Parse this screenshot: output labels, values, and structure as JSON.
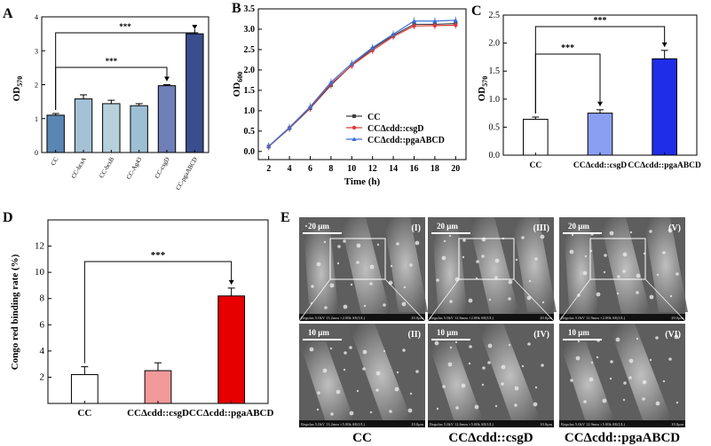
{
  "panel_letters": [
    "A",
    "B",
    "C",
    "D",
    "E"
  ],
  "chart_data": [
    {
      "panel": "A",
      "type": "bar",
      "ylabel_main": "OD",
      "ylabel_sub": "570",
      "ylim": [
        0,
        4
      ],
      "yticks": [
        "0",
        "1",
        "2",
        "3",
        "4"
      ],
      "categories": [
        "CC",
        "CC-bcsA",
        "CC-bcsB",
        "CC-Ag43",
        "CC-csgD",
        "CC-pgaABCD"
      ],
      "values": [
        1.1,
        1.58,
        1.44,
        1.38,
        1.97,
        3.5
      ],
      "errors": [
        0.05,
        0.12,
        0.1,
        0.06,
        0.03,
        0.03
      ],
      "colors": [
        "#5a86b4",
        "#a4c1d6",
        "#b6d1dc",
        "#9dbfd4",
        "#6f7fb8",
        "#3a4e8e"
      ],
      "significance": [
        {
          "from": 0,
          "to": 4,
          "label": "***"
        },
        {
          "from": 0,
          "to": 5,
          "label": "***"
        }
      ]
    },
    {
      "panel": "B",
      "type": "line",
      "xlabel": "Time (h)",
      "ylabel_main": "OD",
      "ylabel_sub": "600",
      "x": [
        2,
        4,
        6,
        8,
        10,
        12,
        14,
        16,
        18,
        20
      ],
      "xlim": [
        1,
        21
      ],
      "ylim": [
        -0.2,
        3.5
      ],
      "xticks": [
        "2",
        "4",
        "6",
        "8",
        "10",
        "12",
        "14",
        "16",
        "18",
        "20"
      ],
      "yticks": [
        "0.0",
        "0.5",
        "1.0",
        "1.5",
        "2.0",
        "2.5",
        "3.0",
        "3.5"
      ],
      "grid": false,
      "legend_position": "lower-right",
      "series": [
        {
          "name": "CC",
          "color": "#404040",
          "marker": "square",
          "values": [
            0.12,
            0.57,
            1.06,
            1.63,
            2.12,
            2.52,
            2.85,
            3.12,
            3.12,
            3.14
          ]
        },
        {
          "name": "CCΔcdd::csgD",
          "color": "#e03a3a",
          "marker": "circle",
          "values": [
            0.12,
            0.58,
            1.08,
            1.66,
            2.11,
            2.48,
            2.82,
            3.08,
            3.09,
            3.1
          ]
        },
        {
          "name": "CCΔcdd::pgaABCD",
          "color": "#3a70d8",
          "marker": "triangle",
          "values": [
            0.13,
            0.59,
            1.1,
            1.7,
            2.16,
            2.55,
            2.88,
            3.2,
            3.2,
            3.22
          ]
        }
      ]
    },
    {
      "panel": "C",
      "type": "bar",
      "ylabel_main": "OD",
      "ylabel_sub": "570",
      "ylim": [
        0,
        2.5
      ],
      "yticks": [
        "0.0",
        "0.5",
        "1.0",
        "1.5",
        "2.0",
        "2.5"
      ],
      "categories": [
        "CC",
        "CCΔcdd::csgD",
        "CCΔcdd::pgaABCD"
      ],
      "values": [
        0.64,
        0.75,
        1.72
      ],
      "errors": [
        0.04,
        0.06,
        0.15
      ],
      "colors": [
        "#ffffff",
        "#8a9ff2",
        "#1f2ce8"
      ],
      "significance": [
        {
          "from": 0,
          "to": 1,
          "label": "***"
        },
        {
          "from": 0,
          "to": 2,
          "label": "***"
        }
      ]
    },
    {
      "panel": "D",
      "type": "bar",
      "ylabel": "Congo red binding rate (%)",
      "ylim": [
        0,
        14
      ],
      "yticks": [
        "2",
        "4",
        "6",
        "8",
        "10",
        "12"
      ],
      "categories": [
        "CC",
        "CCΔcdd::csgD",
        "CCΔcdd::pgaABCD"
      ],
      "values": [
        2.2,
        2.5,
        8.2
      ],
      "errors": [
        0.6,
        0.6,
        0.6
      ],
      "colors": [
        "#ffffff",
        "#f29a9a",
        "#e60000"
      ],
      "significance": [
        {
          "from": 0,
          "to": 2,
          "label": "***"
        }
      ]
    }
  ],
  "sem_panel": {
    "letter": "E",
    "rows": [
      [
        {
          "roman": "(I)",
          "scale": "20 μm",
          "footer": "Regulus 5.0kV 13.2mm ×2.00k SE(UL)",
          "footer_right": "20.0μm"
        },
        {
          "roman": "(III)",
          "scale": "20 μm",
          "footer": "Regulus 5.0kV 12.6mm ×2.00k SE(UL)",
          "footer_right": "20.0μm"
        },
        {
          "roman": "(V)",
          "scale": "20 μm",
          "footer": "Regulus 5.0kV 12.9mm ×2.00k SE(UL)",
          "footer_right": "20.0μm"
        }
      ],
      [
        {
          "roman": "(II)",
          "scale": "10 μm",
          "footer": "Regulus 5.0kV 13.2mm ×5.00k SE(UL)",
          "footer_right": "10.0μm"
        },
        {
          "roman": "(IV)",
          "scale": "10 μm",
          "footer": "Regulus 5.0kV 12.6mm ×5.00k SE(UL)",
          "footer_right": "10.0μm"
        },
        {
          "roman": "(VI)",
          "scale": "10 μm",
          "footer": "Regulus 5.0kV 12.9mm ×5.00k SE(UL)",
          "footer_right": "10.0μm"
        }
      ]
    ],
    "column_labels": [
      "CC",
      "CCΔcdd::csgD",
      "CCΔcdd::pgaABCD"
    ]
  }
}
